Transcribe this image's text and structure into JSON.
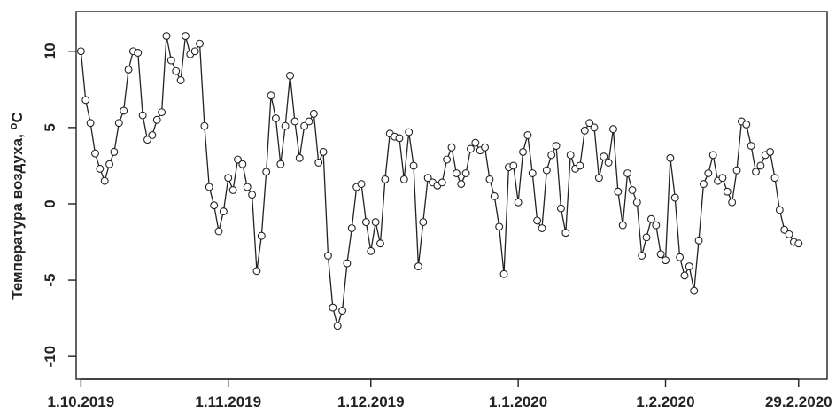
{
  "chart_data": {
    "type": "line",
    "ylabel": "Температура воздуха, ",
    "ylabel_sup": "o",
    "ylabel_unit": "C",
    "xlim": [
      "2019-09-30",
      "2020-03-06"
    ],
    "ylim": [
      -11.5,
      12.6
    ],
    "yticks": [
      -10,
      -5,
      0,
      5,
      10
    ],
    "yticklabels": [
      "-10",
      "-5",
      "0",
      "5",
      "10"
    ],
    "xticks": [
      {
        "date": "2019-10-01",
        "label": "1.10.2019"
      },
      {
        "date": "2019-11-01",
        "label": "1.11.2019"
      },
      {
        "date": "2019-12-01",
        "label": "1.12.2019"
      },
      {
        "date": "2020-01-01",
        "label": "1.1.2020"
      },
      {
        "date": "2020-02-01",
        "label": "1.2.2020"
      },
      {
        "date": "2020-02-29",
        "label": "29.2.2020"
      }
    ],
    "start_date": "2019-10-01",
    "series": [
      {
        "color": "#222222",
        "marker": "circle-open",
        "values": [
          10.0,
          6.8,
          5.3,
          3.3,
          2.3,
          1.5,
          2.6,
          3.4,
          5.3,
          6.1,
          8.8,
          10.0,
          9.9,
          5.8,
          4.2,
          4.5,
          5.5,
          6.0,
          11.0,
          9.4,
          8.7,
          8.1,
          11.0,
          9.8,
          10.0,
          10.5,
          5.1,
          1.1,
          -0.1,
          -1.8,
          -0.5,
          1.7,
          0.9,
          2.9,
          2.6,
          1.1,
          0.6,
          -4.4,
          -2.1,
          2.1,
          7.1,
          5.6,
          2.6,
          5.1,
          8.4,
          5.4,
          3.0,
          5.1,
          5.4,
          5.9,
          2.7,
          3.4,
          -3.4,
          -6.8,
          -8.0,
          -7.0,
          -3.9,
          -1.6,
          1.1,
          1.3,
          -1.2,
          -3.1,
          -1.2,
          -2.6,
          1.6,
          4.6,
          4.4,
          4.3,
          1.6,
          4.7,
          2.5,
          -4.1,
          -1.2,
          1.7,
          1.4,
          1.2,
          1.4,
          2.9,
          3.7,
          2.0,
          1.3,
          2.0,
          3.6,
          4.0,
          3.5,
          3.7,
          1.6,
          0.5,
          -1.5,
          -4.6,
          2.4,
          2.5,
          0.1,
          3.4,
          4.5,
          2.0,
          -1.1,
          -1.6,
          2.2,
          3.2,
          3.8,
          -0.3,
          -1.9,
          3.2,
          2.3,
          2.5,
          4.8,
          5.3,
          5.0,
          1.7,
          3.1,
          2.7,
          4.9,
          0.8,
          -1.4,
          2.0,
          0.9,
          0.1,
          -3.4,
          -2.2,
          -1.0,
          -1.4,
          -3.3,
          -3.7,
          3.0,
          0.4,
          -3.5,
          -4.7,
          -4.1,
          -5.7,
          -2.4,
          1.3,
          2.0,
          3.2,
          1.5,
          1.7,
          0.8,
          0.1,
          2.2,
          5.4,
          5.2,
          3.8,
          2.1,
          2.5,
          3.2,
          3.4,
          1.7,
          -0.4,
          -1.7,
          -2.0,
          -2.5,
          -2.6
        ]
      }
    ]
  }
}
